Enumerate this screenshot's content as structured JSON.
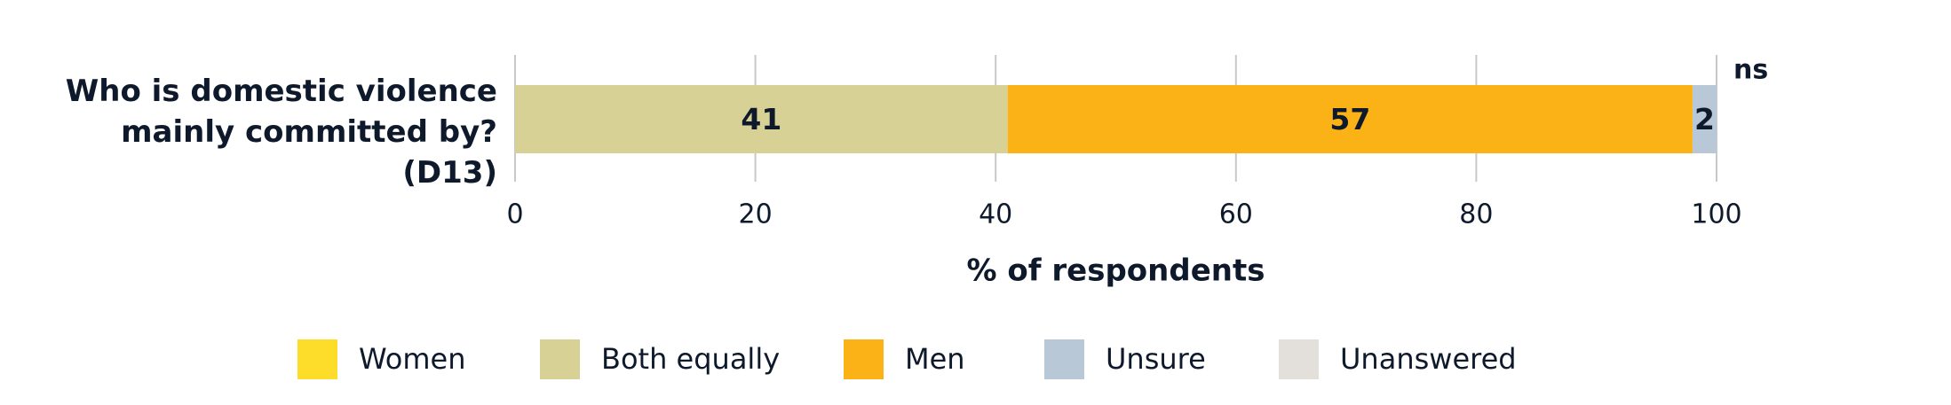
{
  "chart_data": {
    "type": "stacked-barh",
    "categories": [
      "Who is domestic violence mainly committed by? (D13)"
    ],
    "series": [
      {
        "name": "Women",
        "color": "#fddc2a",
        "values": [
          0
        ]
      },
      {
        "name": "Both equally",
        "color": "#d8d195",
        "values": [
          41
        ]
      },
      {
        "name": "Men",
        "color": "#fbb217",
        "values": [
          57
        ]
      },
      {
        "name": "Unsure",
        "color": "#b8c8d6",
        "values": [
          2
        ]
      },
      {
        "name": "Unanswered",
        "color": "#e3dfdb",
        "values": [
          0
        ]
      }
    ],
    "xlim": [
      0,
      100
    ],
    "xticks": [
      0,
      20,
      40,
      60,
      80,
      100
    ],
    "grid": true,
    "xlabel": "% of respondents",
    "annotations": [
      "ns"
    ]
  }
}
